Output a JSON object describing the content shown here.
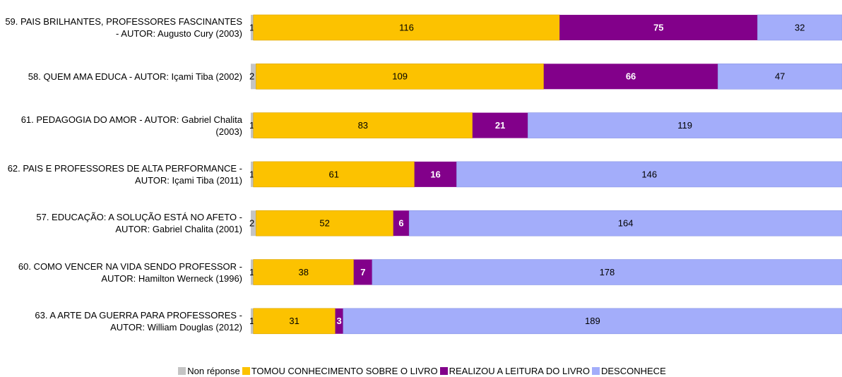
{
  "chart_data": {
    "type": "stacked-barh",
    "categories": [
      "59. PAIS BRILHANTES, PROFESSORES FASCINANTES - AUTOR: Augusto Cury (2003)",
      "58. QUEM AMA EDUCA - AUTOR: Içami Tiba (2002)",
      "61. PEDAGOGIA DO AMOR - AUTOR: Gabriel Chalita (2003)",
      "62. PAIS E PROFESSORES DE ALTA PERFORMANCE - AUTOR: Içami Tiba (2011)",
      "57. EDUCAÇÃO: A SOLUÇÃO ESTÁ NO AFETO - AUTOR: Gabriel Chalita (2001)",
      "60. COMO VENCER NA VIDA SENDO PROFESSOR - AUTOR: Hamilton Werneck (1996)",
      "63. A ARTE DA GUERRA PARA PROFESSORES - AUTOR: William Douglas (2012)"
    ],
    "series": [
      {
        "name": "Non réponse",
        "color": "#c4c4c4",
        "values": [
          1,
          2,
          1,
          1,
          2,
          1,
          1
        ]
      },
      {
        "name": "TOMOU CONHECIMENTO SOBRE O LIVRO",
        "color": "#fcc200",
        "values": [
          116,
          109,
          83,
          61,
          52,
          38,
          31
        ]
      },
      {
        "name": "REALIZOU A LEITURA DO LIVRO",
        "color": "#82008a",
        "values": [
          75,
          66,
          21,
          16,
          6,
          7,
          3
        ]
      },
      {
        "name": "DESCONHECE",
        "color": "#a3adfa",
        "values": [
          32,
          47,
          119,
          146,
          164,
          178,
          189
        ]
      }
    ],
    "legend": "bottom"
  }
}
